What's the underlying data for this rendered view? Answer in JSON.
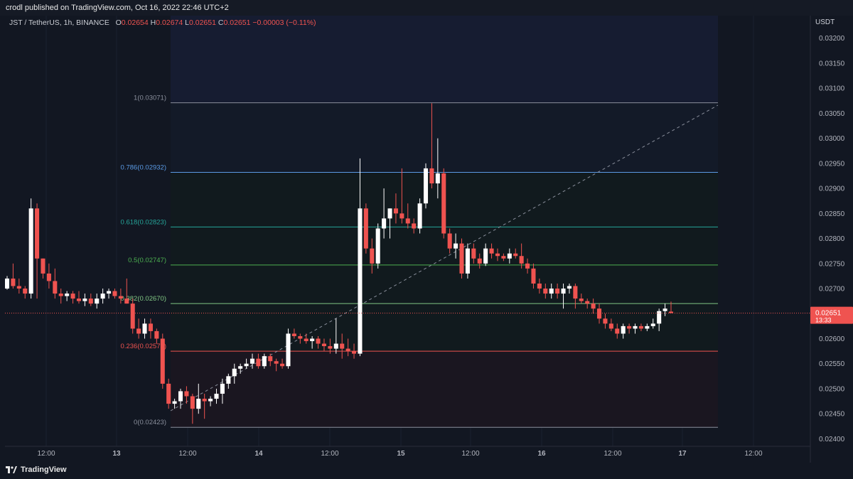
{
  "header": {
    "published": "crodl published on TradingView.com, Oct 16, 2022 22:46 UTC+2"
  },
  "legend": {
    "symbol": "JST / TetherUS, 1h, BINANCE",
    "o_label": "O",
    "o": "0.02654",
    "h_label": "H",
    "h": "0.02674",
    "l_label": "L",
    "l": "0.02651",
    "c_label": "C",
    "c": "0.02651",
    "change": "−0.00003 (−0.11%)"
  },
  "footer": {
    "brand": "TradingView"
  },
  "colors": {
    "up": "#ffffff",
    "down": "#ef5350",
    "background": "#121722",
    "grid": "#1d2230"
  },
  "chart_data": {
    "type": "candlestick",
    "currency": "USDT",
    "y_ticks": [
      "0.03200",
      "0.03150",
      "0.03100",
      "0.03050",
      "0.03000",
      "0.02950",
      "0.02900",
      "0.02850",
      "0.02800",
      "0.02750",
      "0.02700",
      "0.02650",
      "0.02600",
      "0.02550",
      "0.02500",
      "0.02450",
      "0.02400"
    ],
    "ylim": [
      0.02385,
      0.03245
    ],
    "x_ticks": [
      "12:00",
      "13",
      "12:00",
      "14",
      "12:00",
      "15",
      "12:00",
      "16",
      "12:00",
      "17",
      "12:00"
    ],
    "last_price": {
      "label": "0.02651",
      "countdown": "13:33"
    },
    "fib_levels": [
      {
        "label": "1(0.03071)",
        "value": 0.03071,
        "color": "#8a8f9c"
      },
      {
        "label": "0.786(0.02932)",
        "value": 0.02932,
        "color": "#5b9be6"
      },
      {
        "label": "0.618(0.02823)",
        "value": 0.02823,
        "color": "#26a69a"
      },
      {
        "label": "0.5(0.02747)",
        "value": 0.02747,
        "color": "#4caf50"
      },
      {
        "label": "0.382(0.02670)",
        "value": 0.0267,
        "color": "#81c784"
      },
      {
        "label": "0.236(0.02575)",
        "value": 0.02575,
        "color": "#ef5350"
      },
      {
        "label": "0(0.02423)",
        "value": 0.02423,
        "color": "#8a8f9c"
      }
    ],
    "candles": [
      [
        0.027,
        0.02725,
        0.02698,
        0.0272
      ],
      [
        0.0272,
        0.0275,
        0.027,
        0.02705
      ],
      [
        0.02705,
        0.0272,
        0.0269,
        0.027
      ],
      [
        0.027,
        0.02705,
        0.0268,
        0.0269
      ],
      [
        0.0269,
        0.0288,
        0.0268,
        0.0286
      ],
      [
        0.0286,
        0.0287,
        0.0268,
        0.0276
      ],
      [
        0.0276,
        0.0276,
        0.0272,
        0.0273
      ],
      [
        0.0273,
        0.0275,
        0.027,
        0.02715
      ],
      [
        0.02715,
        0.0274,
        0.0268,
        0.0269
      ],
      [
        0.0269,
        0.027,
        0.0267,
        0.02685
      ],
      [
        0.02685,
        0.02695,
        0.02675,
        0.0269
      ],
      [
        0.0269,
        0.02695,
        0.0267,
        0.0268
      ],
      [
        0.0268,
        0.02695,
        0.0267,
        0.02675
      ],
      [
        0.02675,
        0.0269,
        0.02665,
        0.0268
      ],
      [
        0.0268,
        0.0269,
        0.02665,
        0.0267
      ],
      [
        0.0267,
        0.0269,
        0.0266,
        0.0268
      ],
      [
        0.0268,
        0.027,
        0.0267,
        0.0269
      ],
      [
        0.0269,
        0.027,
        0.0268,
        0.02695
      ],
      [
        0.02695,
        0.027,
        0.0268,
        0.02685
      ],
      [
        0.02685,
        0.027,
        0.0267,
        0.0268
      ],
      [
        0.0268,
        0.0272,
        0.0267,
        0.0267
      ],
      [
        0.0267,
        0.0268,
        0.0261,
        0.0262
      ],
      [
        0.0262,
        0.0264,
        0.026,
        0.0261
      ],
      [
        0.0261,
        0.0264,
        0.026,
        0.0263
      ],
      [
        0.0263,
        0.0264,
        0.026,
        0.02615
      ],
      [
        0.02615,
        0.0262,
        0.0259,
        0.026
      ],
      [
        0.026,
        0.0261,
        0.025,
        0.0251
      ],
      [
        0.0251,
        0.0252,
        0.0246,
        0.0247
      ],
      [
        0.0247,
        0.0248,
        0.0246,
        0.02475
      ],
      [
        0.02475,
        0.025,
        0.0246,
        0.02495
      ],
      [
        0.02495,
        0.02505,
        0.0247,
        0.02485
      ],
      [
        0.02485,
        0.0249,
        0.0243,
        0.0246
      ],
      [
        0.0246,
        0.0251,
        0.0245,
        0.0248
      ],
      [
        0.0248,
        0.0249,
        0.0244,
        0.02475
      ],
      [
        0.02475,
        0.02485,
        0.02465,
        0.0248
      ],
      [
        0.0248,
        0.025,
        0.0247,
        0.0249
      ],
      [
        0.0249,
        0.0252,
        0.0247,
        0.0251
      ],
      [
        0.0251,
        0.0253,
        0.025,
        0.02525
      ],
      [
        0.02525,
        0.0255,
        0.0251,
        0.0254
      ],
      [
        0.0254,
        0.0255,
        0.0253,
        0.02545
      ],
      [
        0.02545,
        0.0256,
        0.0254,
        0.0255
      ],
      [
        0.0255,
        0.0257,
        0.0254,
        0.0256
      ],
      [
        0.0256,
        0.0257,
        0.0254,
        0.02545
      ],
      [
        0.02545,
        0.0257,
        0.0254,
        0.02565
      ],
      [
        0.02565,
        0.0257,
        0.02545,
        0.02555
      ],
      [
        0.02555,
        0.0256,
        0.02535,
        0.0255
      ],
      [
        0.0255,
        0.0256,
        0.0254,
        0.02545
      ],
      [
        0.02545,
        0.0262,
        0.0254,
        0.0261
      ],
      [
        0.0261,
        0.0262,
        0.026,
        0.02605
      ],
      [
        0.02605,
        0.0261,
        0.0259,
        0.026
      ],
      [
        0.026,
        0.0261,
        0.0259,
        0.02595
      ],
      [
        0.02595,
        0.02605,
        0.0258,
        0.026
      ],
      [
        0.026,
        0.02605,
        0.0258,
        0.0259
      ],
      [
        0.0259,
        0.026,
        0.02575,
        0.02585
      ],
      [
        0.02585,
        0.026,
        0.0257,
        0.0258
      ],
      [
        0.0258,
        0.0264,
        0.0257,
        0.0259
      ],
      [
        0.0259,
        0.0261,
        0.0256,
        0.0258
      ],
      [
        0.0258,
        0.026,
        0.02565,
        0.02575
      ],
      [
        0.02575,
        0.0259,
        0.0256,
        0.0257
      ],
      [
        0.0257,
        0.0296,
        0.02565,
        0.0286
      ],
      [
        0.0286,
        0.0287,
        0.0277,
        0.0278
      ],
      [
        0.0278,
        0.028,
        0.0273,
        0.0275
      ],
      [
        0.0275,
        0.0283,
        0.0274,
        0.0282
      ],
      [
        0.0282,
        0.029,
        0.028,
        0.0284
      ],
      [
        0.0284,
        0.0286,
        0.028,
        0.0286
      ],
      [
        0.0286,
        0.0289,
        0.0283,
        0.0285
      ],
      [
        0.0285,
        0.0294,
        0.0283,
        0.0284
      ],
      [
        0.0284,
        0.0287,
        0.0282,
        0.0283
      ],
      [
        0.0283,
        0.0284,
        0.0281,
        0.0282
      ],
      [
        0.0282,
        0.0288,
        0.0281,
        0.0287
      ],
      [
        0.0287,
        0.0295,
        0.0286,
        0.0294
      ],
      [
        0.0294,
        0.0307,
        0.029,
        0.0291
      ],
      [
        0.0291,
        0.03,
        0.0288,
        0.0293
      ],
      [
        0.0293,
        0.0294,
        0.028,
        0.0281
      ],
      [
        0.0281,
        0.0282,
        0.0277,
        0.0278
      ],
      [
        0.0278,
        0.0281,
        0.0276,
        0.0279
      ],
      [
        0.0279,
        0.028,
        0.0272,
        0.0273
      ],
      [
        0.0273,
        0.0279,
        0.0272,
        0.0278
      ],
      [
        0.0278,
        0.0279,
        0.0275,
        0.0276
      ],
      [
        0.0276,
        0.0277,
        0.0274,
        0.0275
      ],
      [
        0.0275,
        0.0279,
        0.02745,
        0.0278
      ],
      [
        0.0278,
        0.0279,
        0.0276,
        0.0277
      ],
      [
        0.0277,
        0.0278,
        0.02755,
        0.02765
      ],
      [
        0.02765,
        0.0277,
        0.02755,
        0.0276
      ],
      [
        0.0276,
        0.0278,
        0.0275,
        0.0277
      ],
      [
        0.0277,
        0.0278,
        0.0276,
        0.02765
      ],
      [
        0.02765,
        0.0279,
        0.0274,
        0.0275
      ],
      [
        0.0275,
        0.0276,
        0.0273,
        0.0274
      ],
      [
        0.0274,
        0.0275,
        0.027,
        0.0271
      ],
      [
        0.0271,
        0.0272,
        0.0269,
        0.027
      ],
      [
        0.027,
        0.0271,
        0.0268,
        0.0269
      ],
      [
        0.0269,
        0.0271,
        0.0268,
        0.027
      ],
      [
        0.027,
        0.0271,
        0.0268,
        0.0269
      ],
      [
        0.0269,
        0.0271,
        0.0266,
        0.027
      ],
      [
        0.027,
        0.0271,
        0.0269,
        0.02705
      ],
      [
        0.02705,
        0.0271,
        0.0266,
        0.0268
      ],
      [
        0.0268,
        0.0269,
        0.0267,
        0.02675
      ],
      [
        0.02675,
        0.0268,
        0.0266,
        0.0267
      ],
      [
        0.0267,
        0.0268,
        0.0265,
        0.0266
      ],
      [
        0.0266,
        0.0267,
        0.0263,
        0.0264
      ],
      [
        0.0264,
        0.0265,
        0.0262,
        0.0263
      ],
      [
        0.0263,
        0.0264,
        0.02615,
        0.0262
      ],
      [
        0.0262,
        0.0263,
        0.026,
        0.0261
      ],
      [
        0.0261,
        0.0263,
        0.026,
        0.02625
      ],
      [
        0.02625,
        0.0263,
        0.0261,
        0.0262
      ],
      [
        0.0262,
        0.0263,
        0.0261,
        0.02625
      ],
      [
        0.02625,
        0.0263,
        0.02615,
        0.0262
      ],
      [
        0.0262,
        0.0263,
        0.02615,
        0.02625
      ],
      [
        0.02625,
        0.0264,
        0.0262,
        0.0263
      ],
      [
        0.0263,
        0.0266,
        0.02615,
        0.02655
      ],
      [
        0.02655,
        0.0267,
        0.02645,
        0.0266
      ],
      [
        0.02654,
        0.02674,
        0.02651,
        0.02651
      ]
    ]
  }
}
